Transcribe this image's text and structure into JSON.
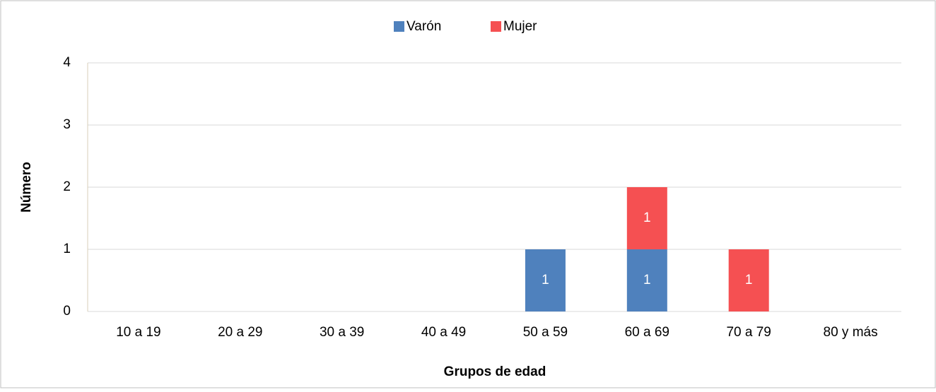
{
  "chart_data": {
    "type": "stacked_bar",
    "x_label": "Grupos de edad",
    "y_label": "Número",
    "categories": [
      "10 a 19",
      "20 a 29",
      "30 a 39",
      "40 a 49",
      "50 a 59",
      "60 a 69",
      "70 a 79",
      "80 y más"
    ],
    "series": [
      {
        "name": "Varón",
        "color": "#4f81bd",
        "values": [
          0,
          0,
          0,
          0,
          1,
          1,
          0,
          0
        ]
      },
      {
        "name": "Mujer",
        "color": "#f55052",
        "values": [
          0,
          0,
          0,
          0,
          0,
          1,
          1,
          0
        ]
      }
    ],
    "ylim": [
      0,
      4
    ],
    "yticks": [
      0,
      1,
      2,
      3,
      4
    ],
    "grid": true,
    "legend": "top"
  }
}
